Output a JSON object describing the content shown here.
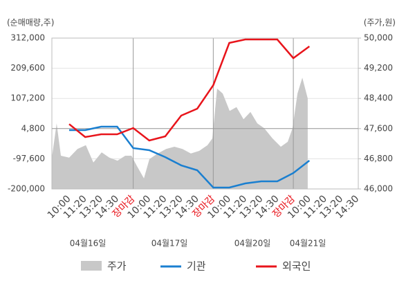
{
  "chart_data": {
    "type": "line",
    "y_label": "(순매매량,주)",
    "y2_label": "(주가,원)",
    "categories": [
      "10:00",
      "11:20",
      "13:20",
      "14:30",
      "장마감",
      "10:00",
      "11:20",
      "13:20",
      "14:30",
      "장마감",
      "10:00",
      "11:20",
      "13:20",
      "14:30",
      "장마감",
      "10:00",
      "11:20",
      "13:20",
      "14:30"
    ],
    "dates": [
      "04월16일",
      "04월17일",
      "04월20일",
      "04월21일"
    ],
    "ylim": [
      -200000,
      312000
    ],
    "yticks": [
      {
        "value": 312000,
        "label": "312,000"
      },
      {
        "value": 209600,
        "label": "209,600"
      },
      {
        "value": 107200,
        "label": "107,200"
      },
      {
        "value": 4800,
        "label": "4,800"
      },
      {
        "value": -97600,
        "label": "-97,600"
      },
      {
        "value": -200000,
        "label": "-200,000"
      }
    ],
    "y2lim": [
      46000,
      50000
    ],
    "y2ticks": [
      {
        "value": 50000,
        "label": "50,000"
      },
      {
        "value": 49200,
        "label": "49,200"
      },
      {
        "value": 48400,
        "label": "48,400"
      },
      {
        "value": 47600,
        "label": "47,600"
      },
      {
        "value": 46800,
        "label": "46,800"
      },
      {
        "value": 46000,
        "label": "46,000"
      }
    ],
    "grid": true,
    "area": {
      "name": "주가",
      "color": "#c8c8c8",
      "axis": "y2",
      "x": [
        -1.08,
        -0.78,
        -0.52,
        0,
        0.52,
        1.04,
        1.51,
        2.03,
        2.51,
        3.02,
        3.5,
        3.89,
        4.23,
        4.67,
        5.01,
        5.53,
        6.05,
        6.57,
        7.08,
        7.6,
        8.12,
        8.64,
        8.94,
        9.24,
        9.59,
        10.02,
        10.45,
        10.89,
        11.32,
        11.75,
        12.18,
        12.7,
        13.22,
        13.65,
        13.95,
        14.26,
        14.56,
        14.9
      ],
      "values": [
        46830,
        47740,
        46880,
        46830,
        47060,
        47160,
        46700,
        46970,
        46830,
        46750,
        46880,
        46880,
        46610,
        46280,
        46790,
        46940,
        47060,
        47120,
        47060,
        46940,
        47010,
        47160,
        47340,
        48660,
        48530,
        48070,
        48170,
        47850,
        48040,
        47740,
        47610,
        47340,
        47120,
        47250,
        47610,
        48530,
        48950,
        48400
      ]
    },
    "series": [
      {
        "name": "기관",
        "color": "#1a7fd0",
        "values": [
          -400,
          -400,
          11400,
          11400,
          -61400,
          -68500,
          -92000,
          -120000,
          -136600,
          -195300,
          -195300,
          -181200,
          -174200,
          -174200,
          -146000,
          -103700,
          null,
          null,
          null
        ]
      },
      {
        "name": "외국인",
        "color": "#e8141b",
        "values": [
          20000,
          -23800,
          -14400,
          -14400,
          6700,
          -35600,
          -21500,
          48960,
          72500,
          152300,
          295600,
          307300,
          307300,
          307300,
          243900,
          283800,
          null,
          null,
          null
        ]
      }
    ]
  }
}
